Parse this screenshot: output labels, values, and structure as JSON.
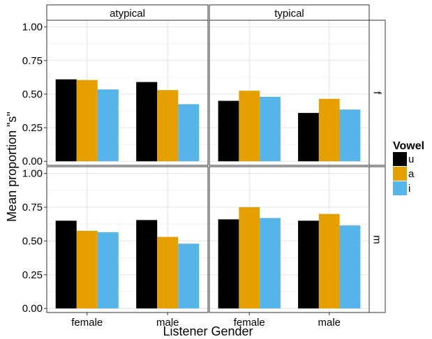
{
  "chart_data": {
    "type": "bar",
    "xlabel": "Listener Gender",
    "ylabel": "Mean proportion \"s\"",
    "ylim": [
      -0.03,
      1.05
    ],
    "yticks": [
      "0.00",
      "0.25",
      "0.50",
      "0.75",
      "1.00"
    ],
    "ytick_values": [
      0,
      0.25,
      0.5,
      0.75,
      1.0
    ],
    "categories": [
      "female",
      "male"
    ],
    "grid": true,
    "legend": {
      "title": "Vowel",
      "position": "right",
      "entries": [
        {
          "label": "u",
          "color": "#000000"
        },
        {
          "label": "a",
          "color": "#E69F00"
        },
        {
          "label": "i",
          "color": "#56B4E9"
        }
      ]
    },
    "col_facets": [
      "atypical",
      "typical"
    ],
    "row_facets": [
      "f",
      "m"
    ],
    "panels": [
      {
        "col": "atypical",
        "row": "f",
        "series": [
          {
            "name": "u",
            "values": [
              0.61,
              0.59
            ]
          },
          {
            "name": "a",
            "values": [
              0.605,
              0.53
            ]
          },
          {
            "name": "i",
            "values": [
              0.535,
              0.425
            ]
          }
        ]
      },
      {
        "col": "typical",
        "row": "f",
        "series": [
          {
            "name": "u",
            "values": [
              0.45,
              0.36
            ]
          },
          {
            "name": "a",
            "values": [
              0.525,
              0.465
            ]
          },
          {
            "name": "i",
            "values": [
              0.48,
              0.385
            ]
          }
        ]
      },
      {
        "col": "atypical",
        "row": "m",
        "series": [
          {
            "name": "u",
            "values": [
              0.65,
              0.655
            ]
          },
          {
            "name": "a",
            "values": [
              0.575,
              0.53
            ]
          },
          {
            "name": "i",
            "values": [
              0.565,
              0.48
            ]
          }
        ]
      },
      {
        "col": "typical",
        "row": "m",
        "series": [
          {
            "name": "u",
            "values": [
              0.66,
              0.65
            ]
          },
          {
            "name": "a",
            "values": [
              0.75,
              0.7
            ]
          },
          {
            "name": "i",
            "values": [
              0.67,
              0.615
            ]
          }
        ]
      }
    ]
  }
}
